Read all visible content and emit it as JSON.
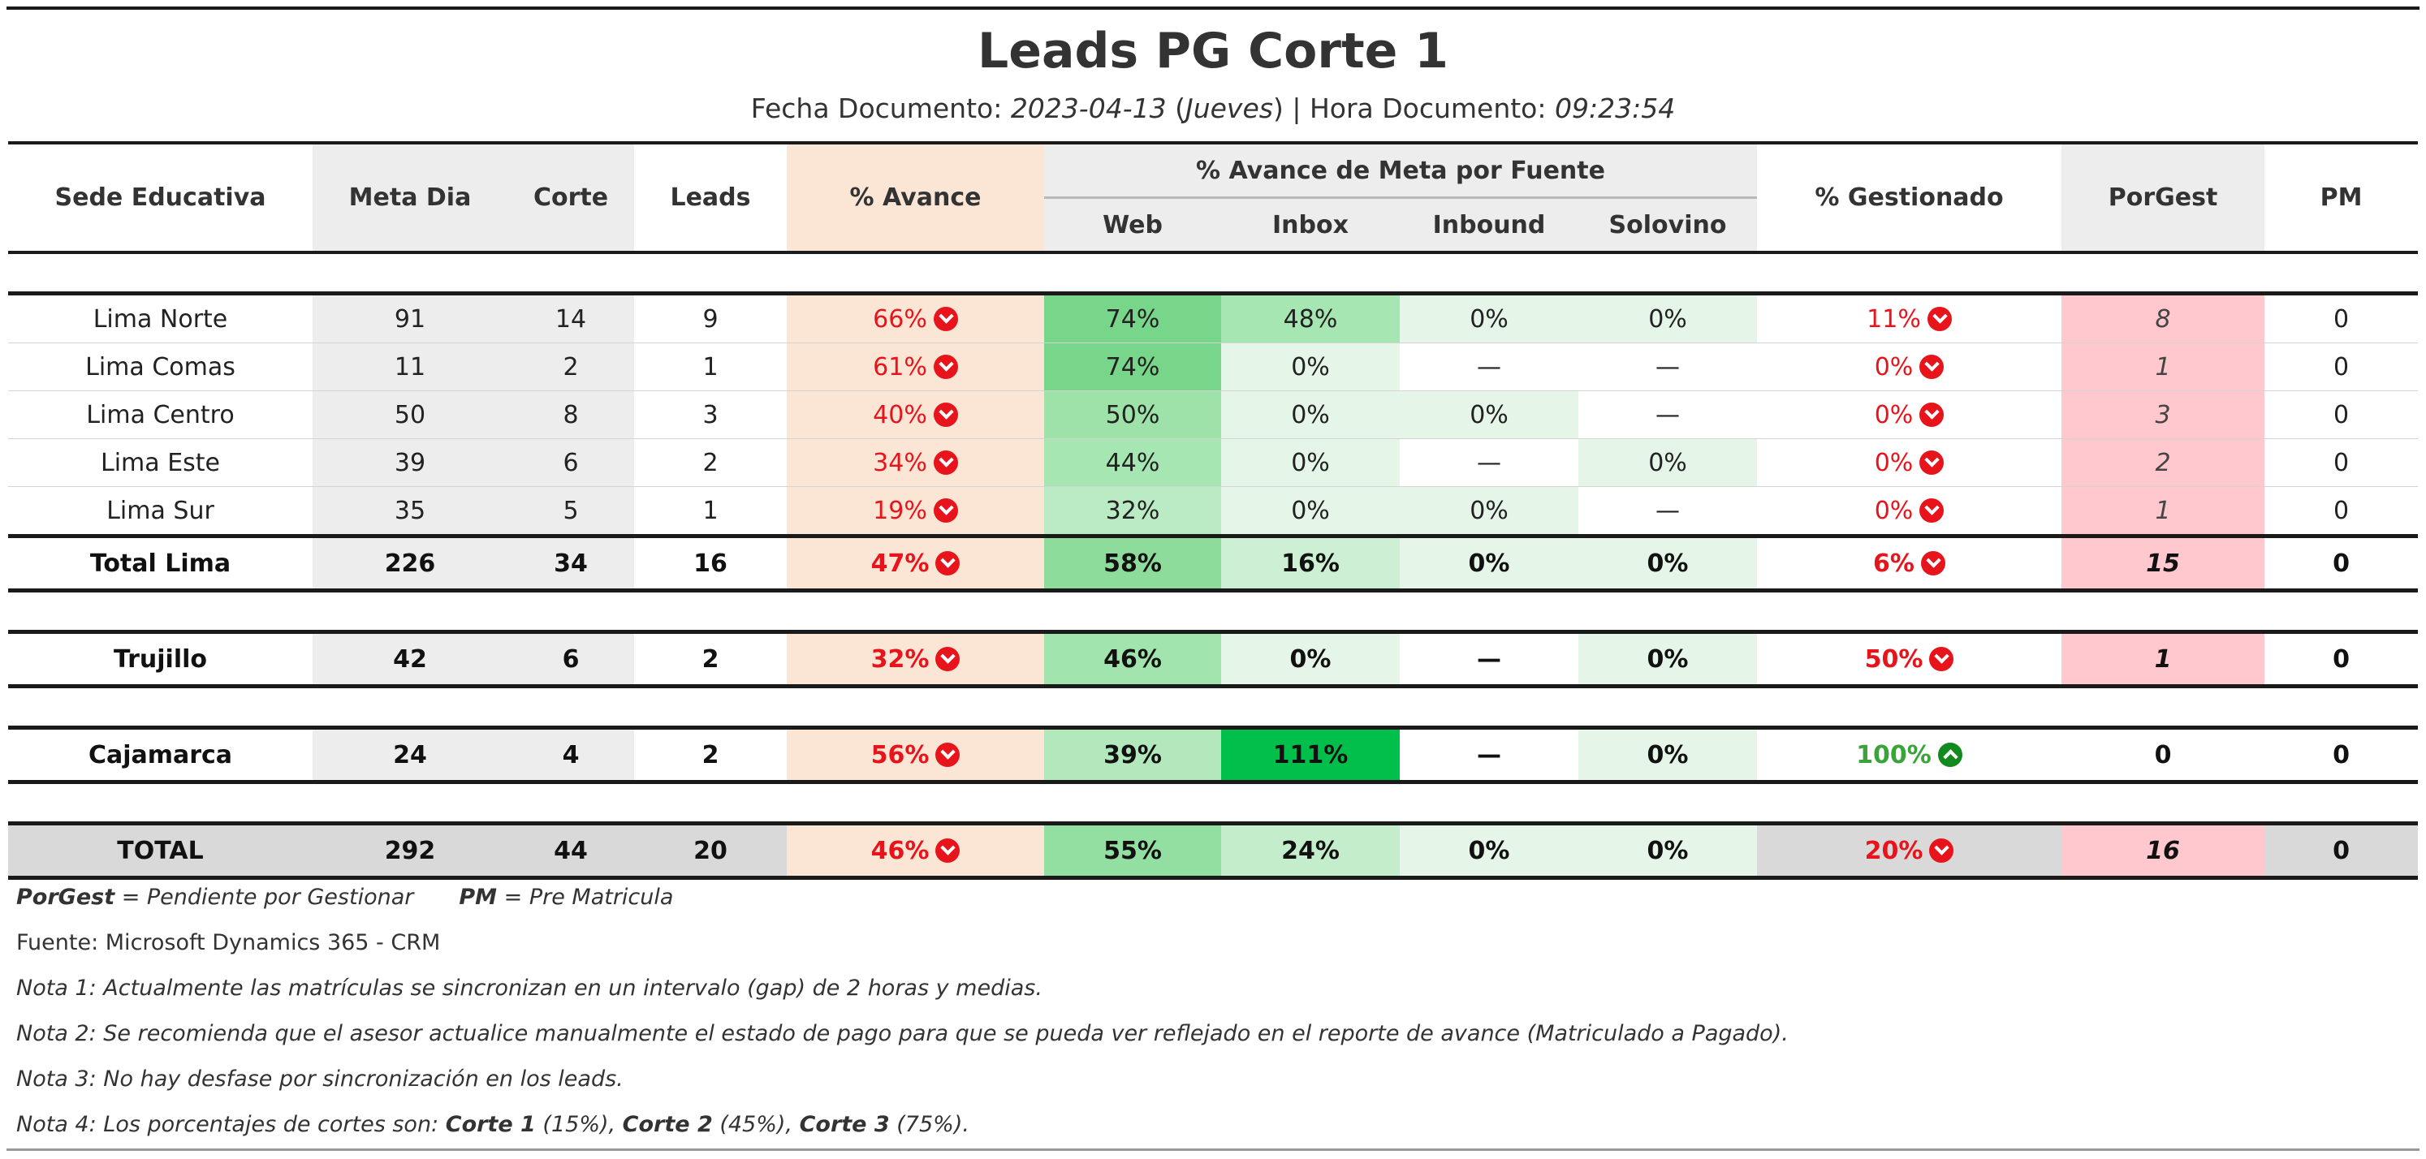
{
  "report": {
    "title": "Leads PG Corte 1",
    "subtitle": {
      "fecha_label": "Fecha Documento: ",
      "fecha_value": "2023-04-13",
      "day_open": " (",
      "day_value": "Jueves",
      "day_close": ") | ",
      "hora_label": "Hora Documento: ",
      "hora_value": "09:23:54"
    }
  },
  "headers": {
    "sede": "Sede Educativa",
    "meta": "Meta Dia",
    "corte": "Corte",
    "leads": "Leads",
    "avance": "% Avance",
    "fuente_group": "% Avance de Meta por Fuente",
    "web": "Web",
    "inbox": "Inbox",
    "inbound": "Inbound",
    "solovino": "Solovino",
    "gestionado": "% Gestionado",
    "porgest": "PorGest",
    "pm": "PM"
  },
  "colors": {
    "red": "#e8141c",
    "green_text": "#3aa43a",
    "up_icon": "#138a1d",
    "peach": "#fbe6d6",
    "pink": "#ffc7ce",
    "gray": "#ededed",
    "total_gray": "#d9d9d9"
  },
  "rows": [
    {
      "sede": "Lima Norte",
      "meta": "91",
      "corte": "14",
      "leads": "9",
      "avance": "66%",
      "avance_icon": "down-circle-icon",
      "web": "74%",
      "web_bg": "#78d68a",
      "inbox": "48%",
      "inbox_bg": "#a6e6b2",
      "inbound": "0%",
      "inbound_bg": "#e5f6e8",
      "solovino": "0%",
      "solovino_bg": "#e5f6e8",
      "gestionado": "11%",
      "gest_icon": "down-circle-icon",
      "porgest": "8",
      "pm": "0"
    },
    {
      "sede": "Lima Comas",
      "meta": "11",
      "corte": "2",
      "leads": "1",
      "avance": "61%",
      "avance_icon": "down-circle-icon",
      "web": "74%",
      "web_bg": "#78d68a",
      "inbox": "0%",
      "inbox_bg": "#e5f6e8",
      "inbound": "—",
      "inbound_bg": "#ffffff",
      "solovino": "—",
      "solovino_bg": "#ffffff",
      "gestionado": "0%",
      "gest_icon": "down-circle-icon",
      "porgest": "1",
      "pm": "0"
    },
    {
      "sede": "Lima Centro",
      "meta": "50",
      "corte": "8",
      "leads": "3",
      "avance": "40%",
      "avance_icon": "down-circle-icon",
      "web": "50%",
      "web_bg": "#9ee2aa",
      "inbox": "0%",
      "inbox_bg": "#e5f6e8",
      "inbound": "0%",
      "inbound_bg": "#e5f6e8",
      "solovino": "—",
      "solovino_bg": "#ffffff",
      "gestionado": "0%",
      "gest_icon": "down-circle-icon",
      "porgest": "3",
      "pm": "0"
    },
    {
      "sede": "Lima Este",
      "meta": "39",
      "corte": "6",
      "leads": "2",
      "avance": "34%",
      "avance_icon": "down-circle-icon",
      "web": "44%",
      "web_bg": "#a6e6b2",
      "inbox": "0%",
      "inbox_bg": "#e5f6e8",
      "inbound": "—",
      "inbound_bg": "#ffffff",
      "solovino": "0%",
      "solovino_bg": "#e5f6e8",
      "gestionado": "0%",
      "gest_icon": "down-circle-icon",
      "porgest": "2",
      "pm": "0"
    },
    {
      "sede": "Lima Sur",
      "meta": "35",
      "corte": "5",
      "leads": "1",
      "avance": "19%",
      "avance_icon": "down-circle-icon",
      "web": "32%",
      "web_bg": "#bbebc5",
      "inbox": "0%",
      "inbox_bg": "#e5f6e8",
      "inbound": "0%",
      "inbound_bg": "#e5f6e8",
      "solovino": "—",
      "solovino_bg": "#ffffff",
      "gestionado": "0%",
      "gest_icon": "down-circle-icon",
      "porgest": "1",
      "pm": "0"
    }
  ],
  "total_lima": {
    "sede": "Total Lima",
    "meta": "226",
    "corte": "34",
    "leads": "16",
    "avance": "47%",
    "web": "58%",
    "web_bg": "#8edc9c",
    "inbox": "16%",
    "inbox_bg": "#cdf0d4",
    "inbound": "0%",
    "inbound_bg": "#e5f6e8",
    "solovino": "0%",
    "solovino_bg": "#e5f6e8",
    "gestionado": "6%",
    "porgest": "15",
    "pm": "0"
  },
  "trujillo": {
    "sede": "Trujillo",
    "meta": "42",
    "corte": "6",
    "leads": "2",
    "avance": "32%",
    "web": "46%",
    "web_bg": "#a2e4ae",
    "inbox": "0%",
    "inbox_bg": "#e5f6e8",
    "inbound": "—",
    "inbound_bg": "#ffffff",
    "solovino": "0%",
    "solovino_bg": "#e5f6e8",
    "gestionado": "50%",
    "porgest": "1",
    "pm": "0"
  },
  "cajamarca": {
    "sede": "Cajamarca",
    "meta": "24",
    "corte": "4",
    "leads": "2",
    "avance": "56%",
    "web": "39%",
    "web_bg": "#b2e8bc",
    "inbox": "111%",
    "inbox_bg": "#00c04b",
    "inbound": "—",
    "inbound_bg": "#ffffff",
    "solovino": "0%",
    "solovino_bg": "#e5f6e8",
    "gestionado": "100%",
    "porgest": "0",
    "pm": "0"
  },
  "total": {
    "sede": "TOTAL",
    "meta": "292",
    "corte": "44",
    "leads": "20",
    "avance": "46%",
    "web": "55%",
    "web_bg": "#93dea1",
    "inbox": "24%",
    "inbox_bg": "#c4edcc",
    "inbound": "0%",
    "inbound_bg": "#e5f6e8",
    "solovino": "0%",
    "solovino_bg": "#e5f6e8",
    "gestionado": "20%",
    "porgest": "16",
    "pm": "0"
  },
  "notes": {
    "legend1_key": "PorGest",
    "legend1_text": " = Pendiente por Gestionar",
    "legend2_key": "PM",
    "legend2_text": " = Pre Matricula",
    "fuente": "Fuente: Microsoft Dynamics 365 - CRM",
    "nota1": "Nota 1: Actualmente las matrículas se sincronizan en un intervalo (gap) de 2 horas y medias.",
    "nota2": "Nota 2: Se recomienda que el asesor actualice manualmente el estado de pago para que se pueda ver reflejado en el reporte de avance (Matriculado a Pagado).",
    "nota3": "Nota 3: No hay desfase por sincronización en los leads.",
    "nota4_prefix": "Nota 4: Los porcentajes de cortes son: ",
    "corte1": "Corte 1",
    "corte1_pct": " (15%), ",
    "corte2": "Corte 2",
    "corte2_pct": " (45%), ",
    "corte3": "Corte 3",
    "corte3_pct": " (75%)."
  }
}
